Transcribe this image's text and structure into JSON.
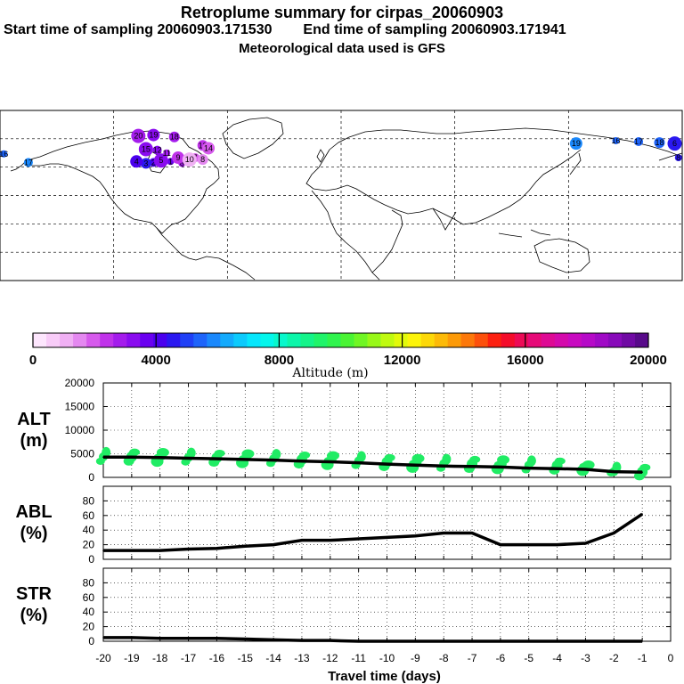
{
  "header": {
    "title": "Retroplume summary for cirpas_20060903",
    "start_label": "Start time of sampling 20060903.171530",
    "end_label": "End time of sampling 20060903.171941",
    "met_label": "Meteorological data used is GFS"
  },
  "colorbar": {
    "title": "Altitude (m)",
    "tick_labels": [
      "0",
      "4000",
      "8000",
      "12000",
      "16000",
      "20000"
    ],
    "colors": [
      "#fde6fd",
      "#f8ccf8",
      "#f0b0f4",
      "#e488f0",
      "#d65aec",
      "#c032ea",
      "#a41cec",
      "#8a0cef",
      "#6a00f0",
      "#4a00ee",
      "#2a18f0",
      "#2040f6",
      "#1e64fa",
      "#1a88fc",
      "#14aafc",
      "#0ccafc",
      "#06e6fc",
      "#04f6ec",
      "#08f8cc",
      "#0cf6aa",
      "#14f48a",
      "#20f46a",
      "#30f44e",
      "#4af434",
      "#70f624",
      "#98f818",
      "#c0fa10",
      "#e2fa0a",
      "#fcf40a",
      "#fcd808",
      "#fcba08",
      "#fc9a08",
      "#fc780a",
      "#fc500c",
      "#fc2010",
      "#f40c2a",
      "#ec0a56",
      "#e60a78",
      "#de0a94",
      "#d40aac",
      "#c80ac0",
      "#b60ac8",
      "#a00ac6",
      "#880aba",
      "#700aa4",
      "#580a8a"
    ]
  },
  "map_plumes": [
    {
      "label": "1",
      "lon": -90,
      "lat": 36,
      "color": "#6a00f0"
    },
    {
      "label": "2",
      "lon": -99,
      "lat": 35,
      "color": "#4a00ee"
    },
    {
      "label": "3",
      "lon": -103,
      "lat": 34,
      "color": "#2a18f0"
    },
    {
      "label": "4",
      "lon": -108,
      "lat": 36,
      "color": "#4a00ee"
    },
    {
      "label": "5",
      "lon": -95,
      "lat": 37,
      "color": "#8a0cef"
    },
    {
      "label": "6",
      "lon": -84,
      "lat": 34,
      "color": "#a41cec"
    },
    {
      "label": "7",
      "lon": -77,
      "lat": 40,
      "color": "#d65aec"
    },
    {
      "label": "8",
      "lon": -73,
      "lat": 38,
      "color": "#e488f0"
    },
    {
      "label": "9",
      "lon": -86,
      "lat": 40,
      "color": "#c032ea"
    },
    {
      "label": "10",
      "lon": -80,
      "lat": 38,
      "color": "#f0b0f4"
    },
    {
      "label": "11",
      "lon": -92,
      "lat": 45,
      "color": "#a41cec"
    },
    {
      "label": "12",
      "lon": -97,
      "lat": 48,
      "color": "#8a0cef"
    },
    {
      "label": "13",
      "lon": -73,
      "lat": 53,
      "color": "#c032ea"
    },
    {
      "label": "14",
      "lon": -70,
      "lat": 50,
      "color": "#d65aec"
    },
    {
      "label": "15",
      "lon": -103,
      "lat": 49,
      "color": "#8a0cef"
    },
    {
      "label": "16",
      "lon": -178,
      "lat": 44,
      "color": "#1e64fa"
    },
    {
      "label": "17",
      "lon": -165,
      "lat": 35,
      "color": "#1a88fc"
    },
    {
      "label": "18",
      "lon": -88,
      "lat": 62,
      "color": "#a41cec"
    },
    {
      "label": "19",
      "lon": -99,
      "lat": 64,
      "color": "#8a0cef"
    },
    {
      "label": "20",
      "lon": -107,
      "lat": 63,
      "color": "#a41cec"
    },
    {
      "label": "16",
      "lon": 145,
      "lat": 58,
      "color": "#1e64fa"
    },
    {
      "label": "17",
      "lon": 157,
      "lat": 57,
      "color": "#1e64fa"
    },
    {
      "label": "18",
      "lon": 168,
      "lat": 56,
      "color": "#1e64fa"
    },
    {
      "label": "19",
      "lon": 124,
      "lat": 55,
      "color": "#1a88fc"
    },
    {
      "label": "6",
      "lon": 176,
      "lat": 55,
      "color": "#2a18f0"
    },
    {
      "label": "8",
      "lon": 178,
      "lat": 40,
      "color": "#2a18f0"
    }
  ],
  "chart_data": [
    {
      "type": "line",
      "ylabel": "ALT\n(m)",
      "ylabel_lines": [
        "ALT",
        "(m)"
      ],
      "x": [
        -20,
        -19,
        -18,
        -17,
        -16,
        -15,
        -14,
        -13,
        -12,
        -11,
        -10,
        -9,
        -8,
        -7,
        -6,
        -5,
        -4,
        -3,
        -2,
        -1
      ],
      "values": [
        4300,
        4300,
        4200,
        4050,
        3950,
        3800,
        3650,
        3450,
        3300,
        3100,
        2800,
        2600,
        2400,
        2300,
        2200,
        1950,
        1850,
        1700,
        1200,
        1100
      ],
      "ylim": [
        0,
        20000
      ],
      "yticks": [
        0,
        5000,
        10000,
        15000,
        20000
      ],
      "ytick_labels": [
        "0",
        "5000",
        "10000",
        "15000",
        "20000"
      ],
      "scatter_color": "#20ec64"
    },
    {
      "type": "line",
      "ylabel_lines": [
        "ABL",
        "(%)"
      ],
      "x": [
        -20,
        -19,
        -18,
        -17,
        -16,
        -15,
        -14,
        -13,
        -12,
        -11,
        -10,
        -9,
        -8,
        -7,
        -6,
        -5,
        -4,
        -3,
        -2,
        -1
      ],
      "values": [
        12,
        12,
        12,
        14,
        15,
        18,
        20,
        26,
        26,
        28,
        30,
        32,
        36,
        36,
        20,
        20,
        20,
        22,
        36,
        62
      ],
      "ylim": [
        0,
        100
      ],
      "yticks": [
        0,
        20,
        40,
        60,
        80
      ],
      "ytick_labels": [
        "0",
        "20",
        "40",
        "60",
        "80"
      ]
    },
    {
      "type": "line",
      "ylabel_lines": [
        "STR",
        "(%)"
      ],
      "x": [
        -20,
        -19,
        -18,
        -17,
        -16,
        -15,
        -14,
        -13,
        -12,
        -11,
        -10,
        -9,
        -8,
        -7,
        -6,
        -5,
        -4,
        -3,
        -2,
        -1
      ],
      "values": [
        5,
        5,
        4,
        4,
        4,
        3,
        2,
        1,
        1,
        0,
        0,
        0,
        0,
        0,
        0,
        0,
        0,
        0,
        0,
        0
      ],
      "ylim": [
        0,
        100
      ],
      "yticks": [
        0,
        20,
        40,
        60,
        80
      ],
      "ytick_labels": [
        "0",
        "20",
        "40",
        "60",
        "80"
      ],
      "xticks": [
        -20,
        -19,
        -18,
        -17,
        -16,
        -15,
        -14,
        -13,
        -12,
        -11,
        -10,
        -9,
        -8,
        -7,
        -6,
        -5,
        -4,
        -3,
        -2,
        -1,
        0
      ],
      "xtick_labels": [
        "-20",
        "-19",
        "-18",
        "-17",
        "-16",
        "-15",
        "-14",
        "-13",
        "-12",
        "-11",
        "-10",
        "-9",
        "-8",
        "-7",
        "-6",
        "-5",
        "-4",
        "-3",
        "-2",
        "-1",
        "0"
      ],
      "xlabel": "Travel time (days)"
    }
  ]
}
